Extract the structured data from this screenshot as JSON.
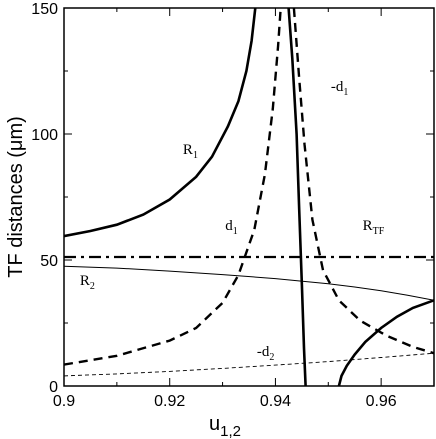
{
  "chart_data": {
    "type": "line",
    "xlabel": {
      "main": "u",
      "sub": "1,2"
    },
    "ylabel": "TF distances (μm)",
    "xlim": [
      0.9,
      0.97
    ],
    "ylim": [
      0,
      150
    ],
    "xticks": [
      0.9,
      0.92,
      0.94,
      0.96
    ],
    "xtick_labels": [
      "0.9",
      "0.92",
      "0.94",
      "0.96"
    ],
    "yticks": [
      0,
      50,
      100,
      150
    ],
    "ytick_labels": [
      "0",
      "50",
      "100",
      "150"
    ],
    "grid": false,
    "legend": "none",
    "series": [
      {
        "id": "R1",
        "style": "solid-thick",
        "segments": [
          [
            [
              0.9,
              59.5
            ],
            [
              0.905,
              61.5
            ],
            [
              0.91,
              64
            ],
            [
              0.915,
              68
            ],
            [
              0.92,
              74
            ],
            [
              0.925,
              83
            ],
            [
              0.928,
              91
            ],
            [
              0.931,
              103
            ],
            [
              0.933,
              113
            ],
            [
              0.9345,
              125
            ],
            [
              0.9355,
              137
            ],
            [
              0.9362,
              150
            ]
          ],
          [
            [
              0.9425,
              150
            ],
            [
              0.9432,
              130
            ],
            [
              0.944,
              100
            ],
            [
              0.9445,
              70
            ],
            [
              0.945,
              40
            ],
            [
              0.9454,
              15
            ],
            [
              0.9457,
              0
            ]
          ]
        ]
      },
      {
        "id": "d1",
        "style": "dashed-thick",
        "segments": [
          [
            [
              0.9,
              8.5
            ],
            [
              0.91,
              12
            ],
            [
              0.92,
              18
            ],
            [
              0.925,
              23
            ],
            [
              0.93,
              33
            ],
            [
              0.933,
              44
            ],
            [
              0.936,
              62
            ],
            [
              0.938,
              84
            ],
            [
              0.9395,
              110
            ],
            [
              0.9405,
              135
            ],
            [
              0.941,
              150
            ]
          ],
          [
            [
              0.9435,
              150
            ],
            [
              0.9445,
              122
            ],
            [
              0.9455,
              96
            ],
            [
              0.947,
              66
            ],
            [
              0.949,
              46
            ],
            [
              0.952,
              34
            ],
            [
              0.956,
              26
            ],
            [
              0.961,
              20
            ],
            [
              0.966,
              15.5
            ],
            [
              0.97,
              13
            ]
          ]
        ]
      },
      {
        "id": "RTF",
        "style": "dashdot-thick",
        "segments": [
          [
            [
              0.9,
              51.2
            ],
            [
              0.97,
              51.2
            ]
          ]
        ]
      },
      {
        "id": "R2",
        "style": "solid-thin",
        "segments": [
          [
            [
              0.9,
              47.5
            ],
            [
              0.91,
              46.8
            ],
            [
              0.92,
              45.6
            ],
            [
              0.93,
              44.2
            ],
            [
              0.94,
              42.6
            ],
            [
              0.95,
              40.6
            ],
            [
              0.955,
              39.3
            ],
            [
              0.96,
              37.8
            ],
            [
              0.965,
              36
            ],
            [
              0.97,
              34
            ]
          ]
        ]
      },
      {
        "id": "RightBranch",
        "style": "solid-thick",
        "segments": [
          [
            [
              0.952,
              0
            ],
            [
              0.9525,
              4
            ],
            [
              0.9535,
              8
            ],
            [
              0.955,
              12.5
            ],
            [
              0.957,
              17.5
            ],
            [
              0.96,
              23
            ],
            [
              0.963,
              27.5
            ],
            [
              0.966,
              31
            ],
            [
              0.97,
              34
            ]
          ]
        ]
      },
      {
        "id": "minus_d2",
        "style": "dashed-thin",
        "segments": [
          [
            [
              0.9,
              4
            ],
            [
              0.91,
              4.8
            ],
            [
              0.92,
              5.8
            ],
            [
              0.93,
              7
            ],
            [
              0.94,
              8.3
            ],
            [
              0.95,
              9.7
            ],
            [
              0.96,
              11.3
            ],
            [
              0.97,
              13
            ]
          ]
        ]
      }
    ],
    "annotations": [
      {
        "main": "R",
        "sub": "1",
        "x": 0.9225,
        "y": 92
      },
      {
        "main": "-d",
        "sub": "1",
        "x": 0.9505,
        "y": 117
      },
      {
        "main": "d",
        "sub": "1",
        "x": 0.9305,
        "y": 62
      },
      {
        "main": "R",
        "sub": "TF",
        "x": 0.9565,
        "y": 62
      },
      {
        "main": "R",
        "sub": "2",
        "x": 0.903,
        "y": 40
      },
      {
        "main": "-d",
        "sub": "2",
        "x": 0.9365,
        "y": 12
      }
    ]
  }
}
